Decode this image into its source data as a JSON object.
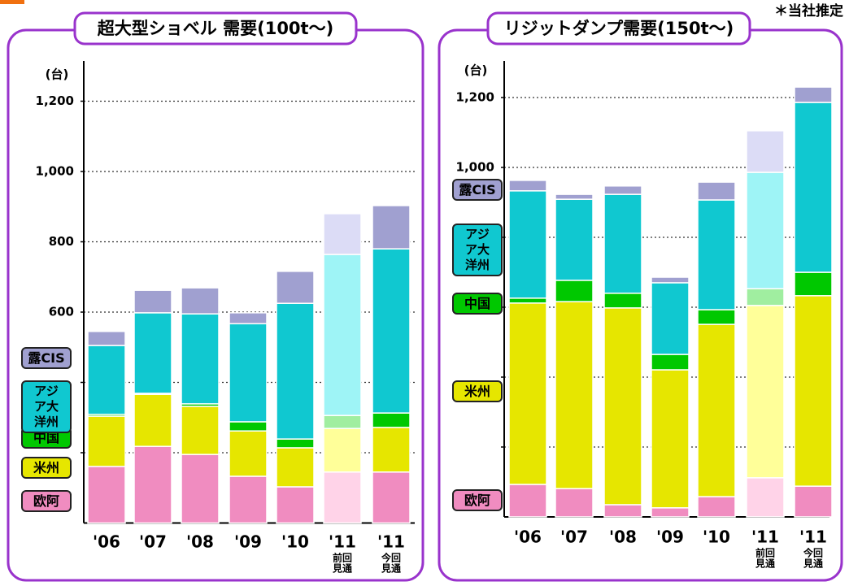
{
  "note": "＊当社推定",
  "chart_data": [
    {
      "type": "bar",
      "stacked": true,
      "title": "超大型ショベル 需要(100t〜)",
      "y_label": "(台)",
      "categories": [
        "'06",
        "'07",
        "'08",
        "'09",
        "'10",
        "'11",
        "'11"
      ],
      "category_notes": [
        null,
        null,
        null,
        null,
        null,
        [
          "前回",
          "見通"
        ],
        [
          "今回",
          "見通"
        ]
      ],
      "ylim": [
        0,
        1300
      ],
      "yticks": [
        600,
        800,
        {
          "value": 1000,
          "label": "1,000"
        },
        {
          "value": 1200,
          "label": "1,200"
        }
      ],
      "ygrid": [
        200,
        400,
        600,
        800,
        1000,
        1200
      ],
      "series": [
        {
          "name": "欧阿",
          "colors": [
            "#f08cc0",
            "#f08cc0",
            "#f08cc0",
            "#f08cc0",
            "#f08cc0",
            "#ffd3e8",
            "#f08cc0"
          ],
          "values": [
            161,
            218,
            195,
            133,
            103,
            145,
            145
          ]
        },
        {
          "name": "米州",
          "colors": [
            "#e6e600",
            "#e6e600",
            "#e6e600",
            "#e6e600",
            "#e6e600",
            "#ffff99",
            "#e6e600"
          ],
          "values": [
            143,
            148,
            137,
            129,
            111,
            124,
            127
          ]
        },
        {
          "name": "中国",
          "colors": [
            "#00c800",
            "#00c800",
            "#00c800",
            "#00c800",
            "#00c800",
            "#a0eea0",
            "#00c800"
          ],
          "values": [
            5,
            3,
            7,
            26,
            25,
            37,
            41
          ]
        },
        {
          "name": "アジア大洋州",
          "colors": [
            "#10c8d0",
            "#10c8d0",
            "#10c8d0",
            "#10c8d0",
            "#10c8d0",
            "#9ef4f6",
            "#10c8d0"
          ],
          "values": [
            196,
            229,
            256,
            279,
            386,
            458,
            467
          ]
        },
        {
          "name": "露CIS",
          "colors": [
            "#a0a0d0",
            "#a0a0d0",
            "#a0a0d0",
            "#a0a0d0",
            "#a0a0d0",
            "#dcdcf6",
            "#a0a0d0"
          ],
          "values": [
            40,
            64,
            74,
            31,
            91,
            116,
            123
          ]
        }
      ]
    },
    {
      "type": "bar",
      "stacked": true,
      "title": "リジットダンプ需要(150t〜)",
      "y_label": "(台)",
      "categories": [
        "'06",
        "'07",
        "'08",
        "'09",
        "'10",
        "'11",
        "'11"
      ],
      "category_notes": [
        null,
        null,
        null,
        null,
        null,
        [
          "前回",
          "見通"
        ],
        [
          "今回",
          "見通"
        ]
      ],
      "ylim": [
        0,
        1300
      ],
      "yticks": [
        {
          "value": 1000,
          "label": "1,000"
        },
        {
          "value": 1200,
          "label": "1,200"
        }
      ],
      "ygrid": [
        200,
        400,
        600,
        800,
        1000,
        1200
      ],
      "series": [
        {
          "name": "欧阿",
          "colors": [
            "#f08cc0",
            "#f08cc0",
            "#f08cc0",
            "#f08cc0",
            "#f08cc0",
            "#ffd3e8",
            "#f08cc0"
          ],
          "values": [
            93,
            81,
            35,
            26,
            58,
            112,
            88
          ]
        },
        {
          "name": "米州",
          "colors": [
            "#e6e600",
            "#e6e600",
            "#e6e600",
            "#e6e600",
            "#e6e600",
            "#ffff99",
            "#e6e600"
          ],
          "values": [
            519,
            535,
            563,
            395,
            493,
            493,
            545
          ]
        },
        {
          "name": "中国",
          "colors": [
            "#00c800",
            "#00c800",
            "#00c800",
            "#00c800",
            "#00c800",
            "#a0eea0",
            "#00c800"
          ],
          "values": [
            14,
            61,
            42,
            44,
            42,
            48,
            67
          ]
        },
        {
          "name": "アジア大洋州",
          "colors": [
            "#10c8d0",
            "#10c8d0",
            "#10c8d0",
            "#10c8d0",
            "#10c8d0",
            "#9ef4f6",
            "#10c8d0"
          ],
          "values": [
            307,
            232,
            283,
            205,
            314,
            333,
            486
          ]
        },
        {
          "name": "露CIS",
          "colors": [
            "#a0a0d0",
            "#a0a0d0",
            "#a0a0d0",
            "#a0a0d0",
            "#a0a0d0",
            "#dcdcf6",
            "#a0a0d0"
          ],
          "values": [
            30,
            14,
            24,
            16,
            51,
            119,
            44
          ]
        }
      ]
    }
  ]
}
